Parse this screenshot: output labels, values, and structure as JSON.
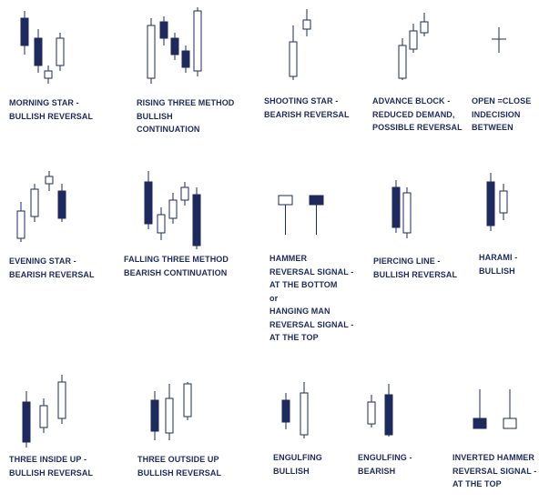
{
  "patterns": [
    {
      "id": "morning-star",
      "lines": [
        "MORNING STAR -",
        "BULLISH REVERSAL"
      ]
    },
    {
      "id": "rising-three",
      "lines": [
        "RISING THREE METHOD",
        "BULLISH",
        "CONTINUATION"
      ]
    },
    {
      "id": "shooting-star",
      "lines": [
        "SHOOTING STAR  -",
        "BEARISH REVERSAL"
      ]
    },
    {
      "id": "advance-block",
      "lines": [
        "ADVANCE BLOCK  -",
        "REDUCED DEMAND,",
        "POSSIBLE REVERSAL"
      ]
    },
    {
      "id": "doji",
      "lines": [
        "OPEN =CLOSE",
        "INDECISION",
        "BETWEEN"
      ]
    },
    {
      "id": "evening-star",
      "lines": [
        "EVENING STAR -",
        "BEARISH REVERSAL"
      ]
    },
    {
      "id": "falling-three",
      "lines": [
        "FALLING THREE METHOD",
        "BEARISH CONTINUATION"
      ]
    },
    {
      "id": "hammer",
      "lines": [
        "HAMMER",
        "REVERSAL SIGNAL -",
        "AT THE BOTTOM",
        "or",
        "HANGING MAN",
        "REVERSAL SIGNAL -",
        "AT THE TOP"
      ]
    },
    {
      "id": "piercing-line",
      "lines": [
        "PIERCING LINE -",
        "BULLISH REVERSAL"
      ]
    },
    {
      "id": "harami",
      "lines": [
        "HARAMI  -",
        "BULLISH"
      ]
    },
    {
      "id": "three-inside-up",
      "lines": [
        "THREE INSIDE UP -",
        "BULLISH REVERSAL"
      ]
    },
    {
      "id": "three-outside-up",
      "lines": [
        "THREE OUTSIDE UP",
        "BULLISH REVERSAL"
      ]
    },
    {
      "id": "engulfing-bullish",
      "lines": [
        "ENGULFING",
        "BULLISH"
      ]
    },
    {
      "id": "engulfing-bearish",
      "lines": [
        "ENGULFING -",
        "BEARISH"
      ]
    },
    {
      "id": "inverted-hammer",
      "lines": [
        "INVERTED HAMMER",
        "REVERSAL SIGNAL -",
        "AT THE TOP"
      ]
    }
  ],
  "colors": {
    "dark": "#1e2a5e",
    "light": "#ffffff",
    "text": "#1e2a5e"
  }
}
